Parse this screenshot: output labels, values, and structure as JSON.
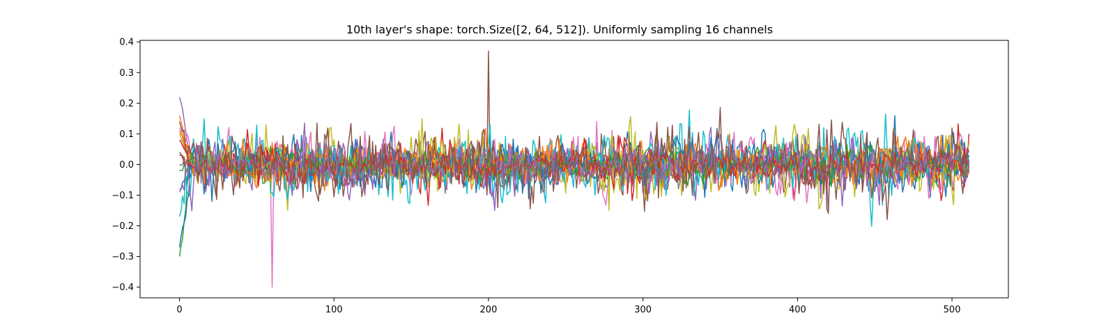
{
  "chart_data": {
    "type": "line",
    "title": "10th layer's shape: torch.Size([2, 64, 512]). Uniformly sampling 16 channels",
    "xlabel": "",
    "ylabel": "",
    "xlim": [
      -25.5,
      536.5
    ],
    "ylim": [
      -0.435,
      0.405
    ],
    "xticks": [
      0,
      100,
      200,
      300,
      400,
      500
    ],
    "yticks": [
      -0.4,
      -0.3,
      -0.2,
      -0.1,
      0.0,
      0.1,
      0.2,
      0.3,
      0.4
    ],
    "ytick_labels": [
      "−0.4",
      "−0.3",
      "−0.2",
      "−0.1",
      "0.0",
      "0.1",
      "0.2",
      "0.3",
      "0.4"
    ],
    "grid": false,
    "legend": "none",
    "x_range": [
      0,
      511
    ],
    "series_count": 16,
    "series_colors": [
      "#1f77b4",
      "#ff7f0e",
      "#2ca02c",
      "#d62728",
      "#9467bd",
      "#8c564b",
      "#e377c2",
      "#7f7f7f",
      "#bcbd22",
      "#17becf",
      "#1f77b4",
      "#ff7f0e",
      "#2ca02c",
      "#d62728",
      "#9467bd",
      "#8c564b"
    ],
    "series_start_values": [
      -0.08,
      0.16,
      -0.3,
      0.03,
      0.22,
      0.04,
      0.12,
      0.0,
      0.1,
      -0.17,
      -0.27,
      0.11,
      -0.02,
      0.08,
      -0.09,
      0.14
    ],
    "series_amplitudes": [
      0.08,
      0.07,
      0.06,
      0.07,
      0.09,
      0.1,
      0.09,
      0.06,
      0.11,
      0.12,
      0.08,
      0.07,
      0.05,
      0.06,
      0.08,
      0.12
    ],
    "global_extremes": {
      "max": {
        "x": 200,
        "y": 0.37
      },
      "min": {
        "x": 60,
        "y": -0.4
      }
    }
  }
}
